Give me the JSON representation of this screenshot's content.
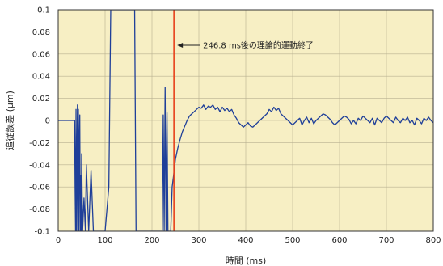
{
  "chart_data": {
    "type": "line",
    "title": "",
    "xlabel": "時間 (ms)",
    "ylabel": "追従誤差 (μm)",
    "xlim": [
      0,
      800
    ],
    "ylim": [
      -0.1,
      0.1
    ],
    "x_ticks": [
      0,
      100,
      200,
      300,
      400,
      500,
      600,
      700,
      800
    ],
    "y_ticks": [
      -0.1,
      -0.08,
      -0.06,
      -0.04,
      -0.02,
      0,
      0.02,
      0.04,
      0.06,
      0.08,
      0.1
    ],
    "x_tick_labels": [
      "0",
      "100",
      "200",
      "300",
      "400",
      "500",
      "600",
      "700",
      "800"
    ],
    "y_tick_labels": [
      "-0.1",
      "-0.08",
      "-0.06",
      "-0.04",
      "-0.02",
      "0",
      "0.02",
      "0.04",
      "0.06",
      "0.08",
      "0.1"
    ],
    "grid": true,
    "plot_background": "#f7efc4",
    "series": [
      {
        "color": "#1f3f99",
        "x": [
          0,
          35,
          36,
          37,
          38,
          39,
          40,
          41,
          42,
          43,
          44,
          45,
          46,
          47,
          48,
          49,
          50,
          52,
          55,
          58,
          60,
          65,
          70,
          75,
          100,
          108,
          112,
          116,
          120,
          150,
          160,
          163,
          166,
          170,
          200,
          222,
          224,
          226,
          228,
          230,
          232,
          234,
          240,
          243,
          246,
          250,
          255,
          260,
          265,
          270,
          275,
          280,
          285,
          290,
          295,
          300,
          305,
          310,
          315,
          320,
          325,
          330,
          335,
          340,
          345,
          350,
          355,
          360,
          365,
          370,
          375,
          380,
          385,
          390,
          395,
          400,
          405,
          410,
          415,
          420,
          425,
          430,
          435,
          440,
          445,
          450,
          455,
          460,
          465,
          470,
          475,
          480,
          485,
          490,
          495,
          500,
          505,
          510,
          515,
          520,
          525,
          530,
          535,
          540,
          545,
          550,
          555,
          560,
          565,
          570,
          575,
          580,
          585,
          590,
          595,
          600,
          605,
          610,
          615,
          620,
          625,
          630,
          635,
          640,
          645,
          650,
          655,
          660,
          665,
          670,
          675,
          680,
          685,
          690,
          695,
          700,
          705,
          710,
          715,
          720,
          725,
          730,
          735,
          740,
          745,
          750,
          755,
          760,
          765,
          770,
          775,
          780,
          785,
          790,
          795,
          800
        ],
        "y": [
          0,
          0,
          -0.06,
          -0.1,
          0.01,
          -0.1,
          -0.04,
          0.014,
          -0.1,
          0.01,
          -0.1,
          -0.02,
          0.005,
          -0.1,
          -0.05,
          -0.1,
          -0.03,
          -0.1,
          -0.07,
          -0.1,
          -0.04,
          -0.1,
          -0.045,
          -0.1,
          -0.1,
          -0.06,
          0.1,
          0.1,
          0.1,
          0.1,
          0.1,
          0.1,
          -0.1,
          -0.1,
          -0.1,
          -0.1,
          0.005,
          -0.1,
          0.03,
          -0.1,
          0.007,
          -0.1,
          -0.1,
          -0.06,
          -0.05,
          -0.035,
          -0.025,
          -0.017,
          -0.01,
          -0.005,
          0,
          0.004,
          0.006,
          0.008,
          0.01,
          0.012,
          0.011,
          0.014,
          0.01,
          0.013,
          0.012,
          0.014,
          0.01,
          0.012,
          0.008,
          0.012,
          0.009,
          0.011,
          0.008,
          0.01,
          0.005,
          0.002,
          -0.002,
          -0.004,
          -0.006,
          -0.004,
          -0.002,
          -0.005,
          -0.006,
          -0.004,
          -0.002,
          0,
          0.002,
          0.004,
          0.006,
          0.01,
          0.008,
          0.012,
          0.009,
          0.011,
          0.006,
          0.004,
          0.002,
          0,
          -0.002,
          -0.004,
          -0.002,
          0,
          0.002,
          -0.004,
          0,
          0.003,
          -0.002,
          0.002,
          -0.003,
          0,
          0.002,
          0.004,
          0.006,
          0.005,
          0.003,
          0.001,
          -0.002,
          -0.004,
          -0.002,
          0,
          0.002,
          0.004,
          0.003,
          0.001,
          -0.003,
          0,
          -0.003,
          0.002,
          0,
          0.004,
          0.002,
          0,
          -0.002,
          0.002,
          -0.004,
          0.002,
          0,
          -0.002,
          0.002,
          0.004,
          0.002,
          0,
          -0.002,
          0.003,
          0,
          -0.002,
          0.002,
          0,
          0.003,
          -0.002,
          0,
          -0.004,
          0.002,
          0,
          -0.003,
          0.002,
          0,
          0.003,
          0,
          -0.002
        ]
      }
    ],
    "marker": {
      "x": 246.8,
      "color": "#e8401a",
      "annotation": "246.8 ms後の理論的運動終了"
    }
  }
}
